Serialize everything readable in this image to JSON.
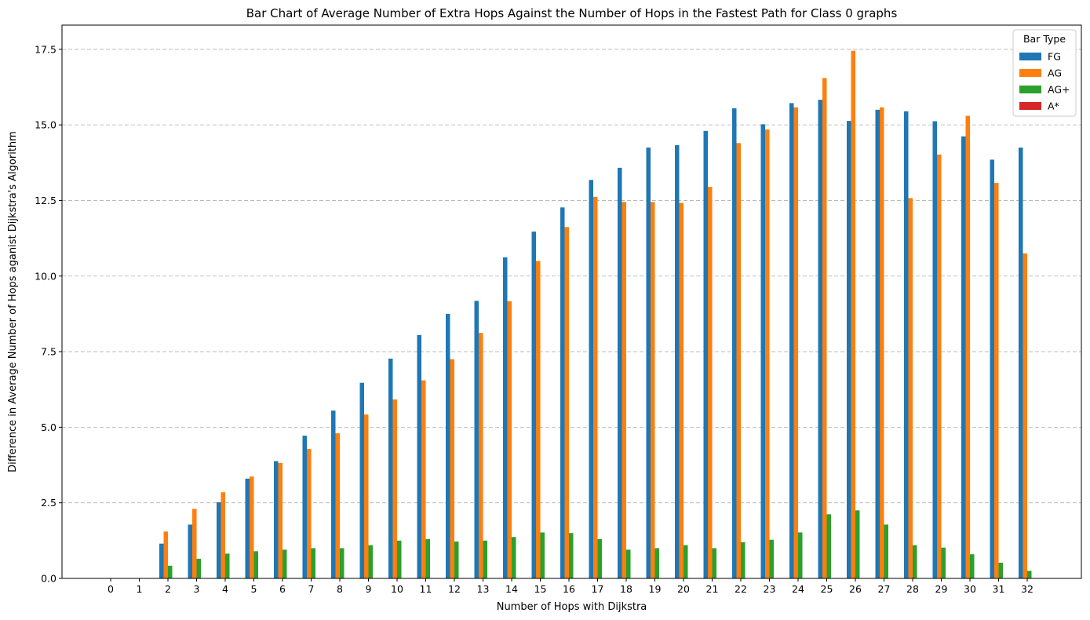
{
  "chart_data": {
    "type": "bar",
    "title": "Bar Chart of Average Number of Extra Hops Against the Number of Hops in the Fastest Path for Class 0 graphs",
    "xlabel": "Number of Hops with Dijkstra",
    "ylabel": "Difference in Average Number of Hops aganist Dijkstra's Algorithm",
    "categories": [
      "0",
      "1",
      "2",
      "3",
      "4",
      "5",
      "6",
      "7",
      "8",
      "9",
      "10",
      "11",
      "12",
      "13",
      "14",
      "15",
      "16",
      "17",
      "18",
      "19",
      "20",
      "21",
      "22",
      "23",
      "24",
      "25",
      "26",
      "27",
      "28",
      "29",
      "30",
      "31",
      "32"
    ],
    "ylim": [
      0,
      18.3
    ],
    "yticks": [
      "0.0",
      "2.5",
      "5.0",
      "7.5",
      "10.0",
      "12.5",
      "15.0",
      "17.5"
    ],
    "grid": "y-dashed",
    "legend": {
      "title": "Bar Type",
      "position": "top-right"
    },
    "series": [
      {
        "name": "FG",
        "color": "#1f77b4",
        "values": [
          0,
          0,
          1.15,
          1.78,
          2.52,
          3.3,
          3.88,
          4.72,
          5.55,
          6.47,
          7.27,
          8.05,
          8.75,
          9.18,
          10.62,
          11.47,
          12.27,
          13.18,
          13.58,
          14.25,
          14.33,
          14.8,
          15.55,
          15.02,
          15.72,
          15.83,
          15.13,
          15.5,
          15.45,
          15.12,
          14.62,
          13.85,
          14.25
        ]
      },
      {
        "name": "AG",
        "color": "#ff7f0e",
        "values": [
          0,
          0,
          1.55,
          2.3,
          2.85,
          3.37,
          3.82,
          4.28,
          4.8,
          5.42,
          5.92,
          6.55,
          7.25,
          8.12,
          9.17,
          10.5,
          11.62,
          12.62,
          12.45,
          12.45,
          12.42,
          12.95,
          14.4,
          14.85,
          15.58,
          16.55,
          17.45,
          15.58,
          12.58,
          14.02,
          15.3,
          13.08,
          10.75
        ]
      },
      {
        "name": "AG+",
        "color": "#2ca02c",
        "values": [
          0,
          0,
          0.42,
          0.65,
          0.82,
          0.9,
          0.95,
          1.0,
          1.0,
          1.1,
          1.25,
          1.3,
          1.22,
          1.25,
          1.37,
          1.52,
          1.5,
          1.3,
          0.95,
          1.0,
          1.1,
          1.0,
          1.2,
          1.28,
          1.52,
          2.12,
          2.25,
          1.78,
          1.1,
          1.02,
          0.8,
          0.52,
          0.25
        ]
      },
      {
        "name": "A*",
        "color": "#d62728",
        "values": [
          0,
          0,
          0,
          0,
          0,
          0,
          0,
          0,
          0,
          0,
          0,
          0,
          0,
          0,
          0,
          0,
          0,
          0,
          0,
          0,
          0,
          0,
          0,
          0,
          0,
          0,
          0,
          0,
          0,
          0,
          0,
          0,
          0
        ]
      }
    ]
  }
}
